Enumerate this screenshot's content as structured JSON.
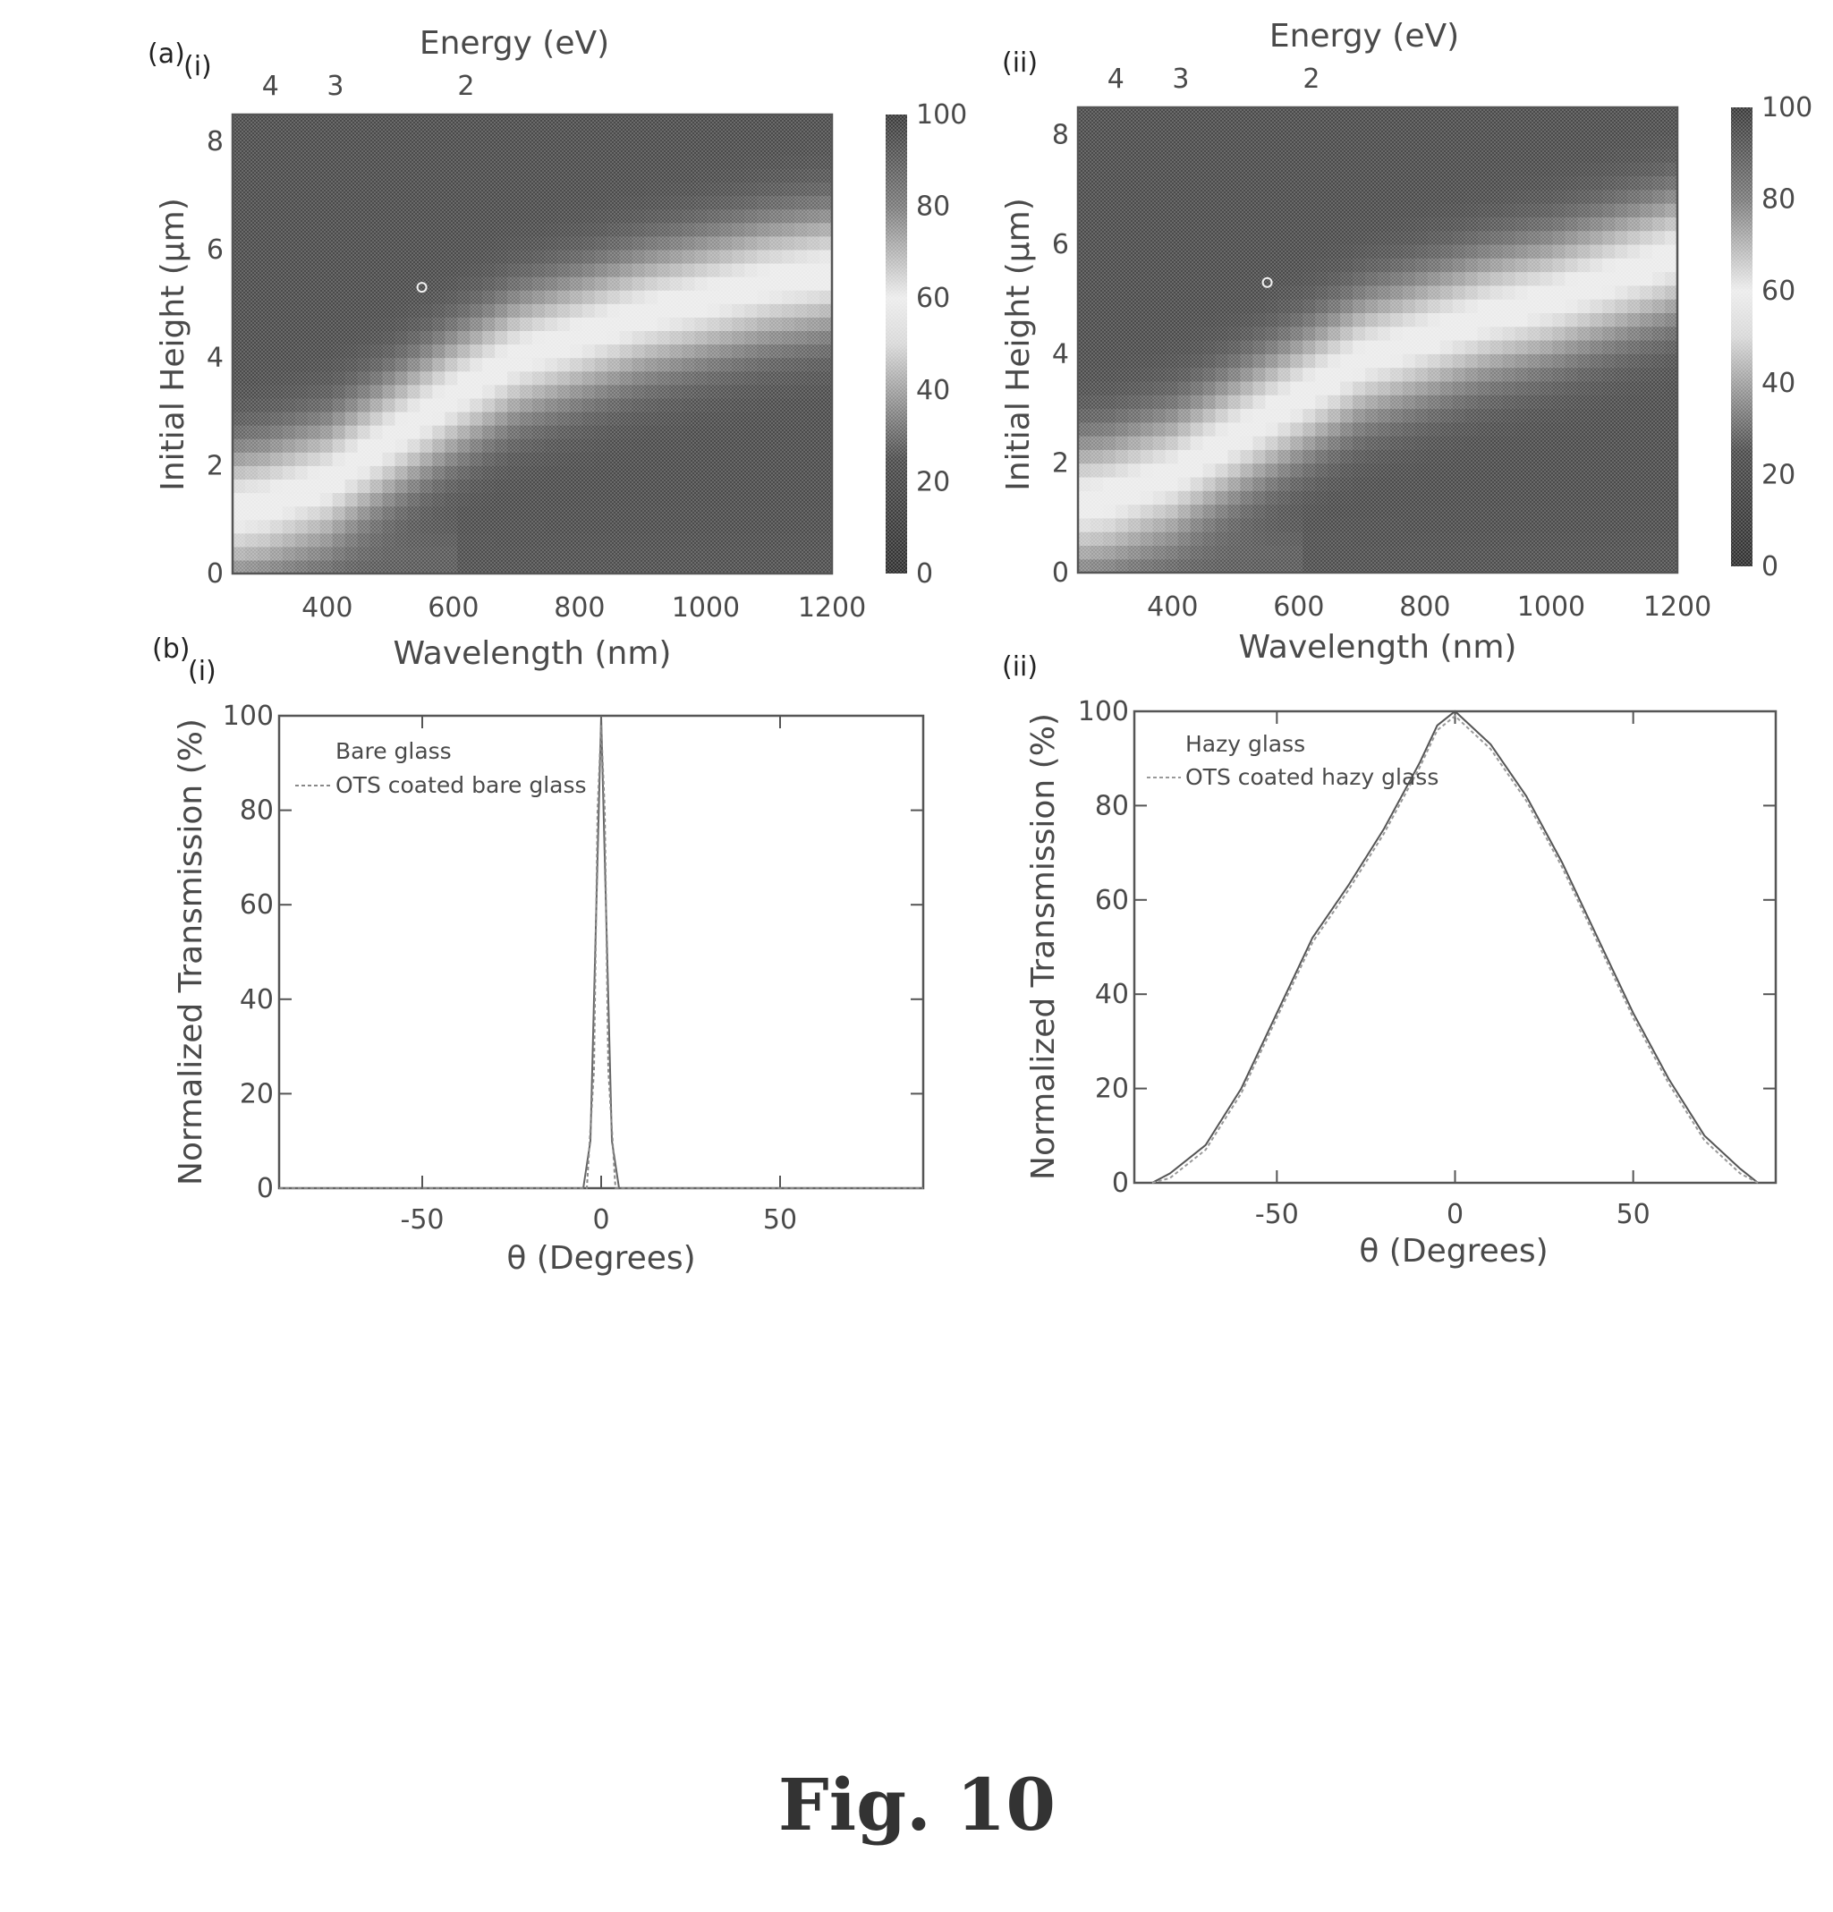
{
  "chart_data": [
    {
      "type": "heatmap",
      "panel_label": "(i)",
      "group_label": "(a)",
      "top_axis_label": "Energy (eV)",
      "top_ticks": [
        "4",
        "3",
        "2"
      ],
      "top_tick_positions_nm": [
        310,
        413,
        620
      ],
      "xlabel": "Wavelength (nm)",
      "ylabel": "Initial Height (μm)",
      "xlim": [
        250,
        1200
      ],
      "ylim": [
        0,
        8.5
      ],
      "xticks": [
        400,
        600,
        800,
        1000,
        1200
      ],
      "yticks": [
        0,
        2,
        4,
        6,
        8
      ],
      "colorbar": {
        "min": 0,
        "max": 100,
        "ticks": [
          0,
          20,
          40,
          60,
          80,
          100
        ]
      },
      "ridge": {
        "wavelength_nm": [
          250,
          300,
          400,
          500,
          600,
          700,
          800,
          900,
          1000,
          1100,
          1200
        ],
        "height_um": [
          1.2,
          1.3,
          1.7,
          2.5,
          3.3,
          4.0,
          4.4,
          4.8,
          5.1,
          5.4,
          5.6
        ]
      },
      "peak_value": 55,
      "marker": {
        "wavelength_nm": 550,
        "height_um": 5.3
      }
    },
    {
      "type": "heatmap",
      "panel_label": "(ii)",
      "top_axis_label": "Energy (eV)",
      "top_ticks": [
        "4",
        "3",
        "2"
      ],
      "top_tick_positions_nm": [
        310,
        413,
        620
      ],
      "xlabel": "Wavelength (nm)",
      "ylabel": "Initial Height (μm)",
      "xlim": [
        250,
        1200
      ],
      "ylim": [
        0,
        8.5
      ],
      "xticks": [
        400,
        600,
        800,
        1000,
        1200
      ],
      "yticks": [
        0,
        2,
        4,
        6,
        8
      ],
      "colorbar": {
        "min": 0,
        "max": 100,
        "ticks": [
          0,
          20,
          40,
          60,
          80,
          100
        ]
      },
      "ridge": {
        "wavelength_nm": [
          250,
          300,
          400,
          500,
          600,
          700,
          800,
          900,
          1000,
          1100,
          1200
        ],
        "height_um": [
          1.3,
          1.4,
          1.8,
          2.5,
          3.2,
          3.9,
          4.3,
          4.7,
          5.0,
          5.4,
          5.8
        ]
      },
      "peak_value": 55,
      "marker": {
        "wavelength_nm": 550,
        "height_um": 5.3
      }
    },
    {
      "type": "line",
      "panel_label": "(i)",
      "group_label": "(b)",
      "xlabel": "θ (Degrees)",
      "ylabel": "Normalized Transmission (%)",
      "xlim": [
        -90,
        90
      ],
      "ylim": [
        0,
        100
      ],
      "xticks": [
        -50,
        0,
        50
      ],
      "yticks": [
        0,
        20,
        40,
        60,
        80,
        100
      ],
      "series": [
        {
          "name": "Bare glass",
          "x": [
            -90,
            -5,
            -3,
            -1,
            0,
            1,
            3,
            5,
            90
          ],
          "y": [
            0,
            0,
            10,
            70,
            100,
            70,
            10,
            0,
            0
          ]
        },
        {
          "name": "OTS coated bare glass",
          "x": [
            -90,
            -4,
            -2,
            -1,
            0,
            1,
            2,
            4,
            90
          ],
          "y": [
            0,
            0,
            25,
            80,
            98,
            80,
            25,
            0,
            0
          ]
        }
      ]
    },
    {
      "type": "line",
      "panel_label": "(ii)",
      "xlabel": "θ (Degrees)",
      "ylabel": "Normalized Transmission (%)",
      "xlim": [
        -90,
        90
      ],
      "ylim": [
        0,
        100
      ],
      "xticks": [
        -50,
        0,
        50
      ],
      "yticks": [
        0,
        20,
        40,
        60,
        80,
        100
      ],
      "series": [
        {
          "name": "Hazy glass",
          "x": [
            -85,
            -80,
            -70,
            -60,
            -50,
            -40,
            -30,
            -20,
            -10,
            -5,
            0,
            10,
            20,
            30,
            40,
            50,
            60,
            70,
            80,
            85
          ],
          "y": [
            0,
            2,
            8,
            20,
            36,
            52,
            63,
            75,
            89,
            97,
            100,
            93,
            82,
            68,
            52,
            36,
            22,
            10,
            3,
            0
          ]
        },
        {
          "name": "OTS coated hazy glass",
          "x": [
            -85,
            -80,
            -70,
            -60,
            -50,
            -40,
            -30,
            -20,
            -10,
            -5,
            0,
            10,
            20,
            30,
            40,
            50,
            60,
            70,
            80,
            85
          ],
          "y": [
            0,
            1,
            7,
            19,
            35,
            51,
            62,
            74,
            88,
            96,
            99,
            92,
            81,
            67,
            51,
            35,
            21,
            9,
            2,
            0
          ]
        }
      ]
    }
  ],
  "caption": "Fig. 10"
}
